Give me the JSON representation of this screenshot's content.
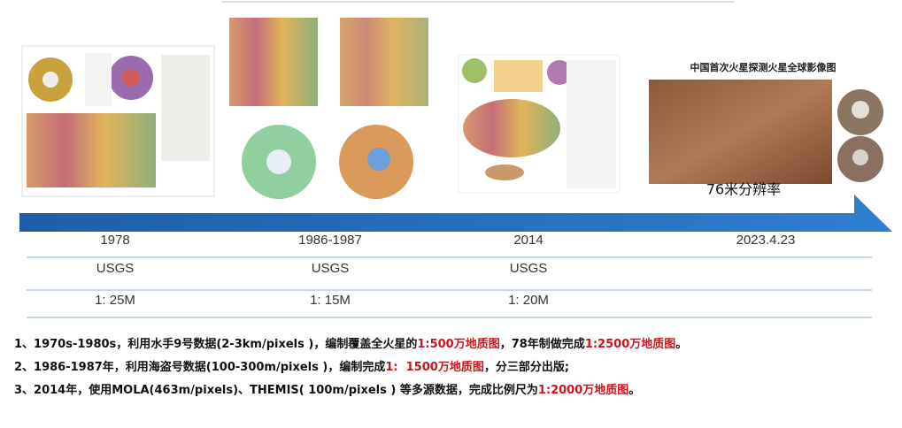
{
  "map_title": "中国首次火星探测火星全球影像图",
  "map_caption": "76米分辨率",
  "timeline": [
    {
      "date": "1978",
      "agency": "USGS",
      "scale": "1: 25M"
    },
    {
      "date": "1986-1987",
      "agency": "USGS",
      "scale": "1: 15M"
    },
    {
      "date": "2014",
      "agency": "USGS",
      "scale": "1: 20M"
    },
    {
      "date": "2023.4.23"
    }
  ],
  "notes": [
    [
      {
        "text": "1、1970s-1980s，利用水手9号数据(2-3km/pixels )，编制覆盖全火星的",
        "color": "#111111"
      },
      {
        "text": "1:500万地质图",
        "color": "#d0121b"
      },
      {
        "text": "，78年制做完成",
        "color": "#111111"
      },
      {
        "text": "1:2500万地质图",
        "color": "#d0121b"
      },
      {
        "text": "。",
        "color": "#111111"
      }
    ],
    [
      {
        "text": "2、1986-1987年，利用海盗号数据(100-300m/pixels )，编制完成",
        "color": "#111111"
      },
      {
        "text": "1:  1500万地质图",
        "color": "#d0121b"
      },
      {
        "text": "，分三部分出版;",
        "color": "#111111"
      }
    ],
    [
      {
        "text": "3、2014年，使用MOLA(463m/pixels)、THEMIS( 100m/pixels ) 等多源数据，完成比例尺为",
        "color": "#111111"
      },
      {
        "text": "1:2000万地质图",
        "color": "#d0121b"
      },
      {
        "text": "。",
        "color": "#111111"
      }
    ]
  ]
}
